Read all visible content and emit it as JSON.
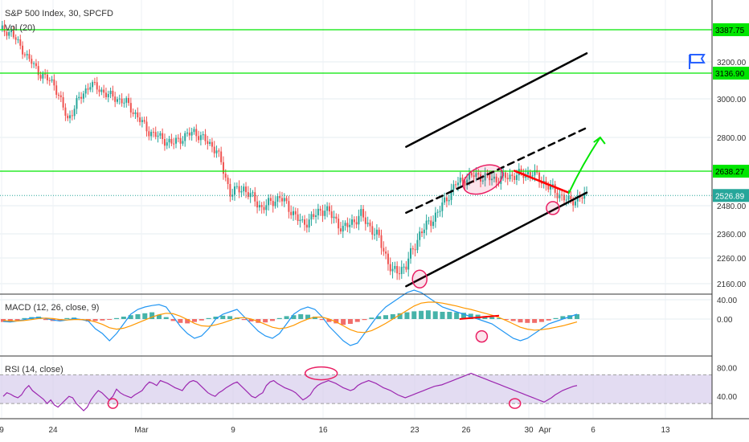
{
  "header": {
    "title": "S&P 500 Index, 30, SPCFD",
    "volume_label": "Vol (20)"
  },
  "colors": {
    "up": "#26a69a",
    "down": "#ef5350",
    "level_line": "#00e600",
    "macd_line": "#2196f3",
    "signal_line": "#ff9800",
    "rsi_line": "#9c27b0",
    "rsi_band": "#d1c4e9",
    "trendline": "#000000",
    "resistance": "#ff0000",
    "projection": "#00e600",
    "circle": "#e91e63"
  },
  "chart_data": [
    {
      "type": "line",
      "subtype": "candlestick",
      "panel": "price",
      "title": "S&P 500 Index, 30, SPCFD",
      "x_ticks": [
        "9",
        "24",
        "Mar",
        "9",
        "16",
        "23",
        "26",
        "30",
        "Apr",
        "6",
        "13"
      ],
      "y_ticks": [
        3200.0,
        3000.0,
        2800.0,
        2480.0,
        2360.0,
        2260.0,
        2160.0
      ],
      "ylim": [
        2110,
        3500
      ],
      "grid": true,
      "levels": [
        3387.75,
        3136.9,
        2638.27
      ],
      "last_price": 2526.89,
      "close_path": [
        {
          "x": 0,
          "y": 3390
        },
        {
          "x": 5,
          "y": 3370
        },
        {
          "x": 12,
          "y": 3230
        },
        {
          "x": 18,
          "y": 3130
        },
        {
          "x": 24,
          "y": 3080
        },
        {
          "x": 30,
          "y": 2890
        },
        {
          "x": 34,
          "y": 2980
        },
        {
          "x": 40,
          "y": 3080
        },
        {
          "x": 48,
          "y": 3020
        },
        {
          "x": 56,
          "y": 2980
        },
        {
          "x": 66,
          "y": 2830
        },
        {
          "x": 76,
          "y": 2770
        },
        {
          "x": 86,
          "y": 2830
        },
        {
          "x": 96,
          "y": 2740
        },
        {
          "x": 102,
          "y": 2540
        },
        {
          "x": 108,
          "y": 2560
        },
        {
          "x": 116,
          "y": 2470
        },
        {
          "x": 124,
          "y": 2520
        },
        {
          "x": 134,
          "y": 2400
        },
        {
          "x": 144,
          "y": 2470
        },
        {
          "x": 152,
          "y": 2380
        },
        {
          "x": 160,
          "y": 2440
        },
        {
          "x": 168,
          "y": 2340
        },
        {
          "x": 174,
          "y": 2200
        },
        {
          "x": 180,
          "y": 2230
        },
        {
          "x": 186,
          "y": 2360
        },
        {
          "x": 194,
          "y": 2450
        },
        {
          "x": 202,
          "y": 2580
        },
        {
          "x": 210,
          "y": 2620
        },
        {
          "x": 220,
          "y": 2600
        },
        {
          "x": 228,
          "y": 2620
        },
        {
          "x": 236,
          "y": 2630
        },
        {
          "x": 244,
          "y": 2560
        },
        {
          "x": 252,
          "y": 2500
        },
        {
          "x": 260,
          "y": 2526.89
        }
      ],
      "annotations": {
        "trend_upper": [
          [
            180,
            2755
          ],
          [
            260,
            3250
          ]
        ],
        "trend_mid_dashed": [
          [
            180,
            2450
          ],
          [
            260,
            2850
          ]
        ],
        "trend_lower": [
          [
            180,
            2150
          ],
          [
            260,
            2540
          ]
        ],
        "resistance_red": [
          [
            228,
            2640
          ],
          [
            252,
            2540
          ]
        ],
        "projection_green": [
          [
            252,
            2536
          ],
          [
            256,
            2560
          ],
          [
            266,
            2800
          ]
        ],
        "circles": [
          [
            186,
            2178
          ],
          [
            214,
            2600
          ],
          [
            245,
            2470
          ]
        ]
      }
    },
    {
      "type": "bar",
      "panel": "macd",
      "title": "MACD (12, 26, close, 9)",
      "y_ticks": [
        40.0,
        0.0
      ],
      "ylim": [
        -75,
        50
      ],
      "histogram": [
        -6,
        -5,
        -3,
        2,
        4,
        5,
        -2,
        -4,
        -3,
        2,
        3,
        -2,
        -5,
        -4,
        -3,
        -1,
        2,
        5,
        8,
        10,
        12,
        14,
        9,
        4,
        -4,
        -8,
        -9,
        -6,
        -3,
        2,
        5,
        7,
        6,
        3,
        -2,
        -5,
        -8,
        -7,
        -4,
        2,
        6,
        8,
        10,
        9,
        5,
        -2,
        -6,
        -9,
        -12,
        -10,
        -6,
        -2,
        3,
        6,
        8,
        10,
        12,
        14,
        16,
        17,
        18,
        16,
        15,
        15,
        14,
        13,
        11,
        9,
        6,
        4,
        2,
        -1,
        -4,
        -7,
        -8,
        -8,
        -6,
        -3,
        2,
        6,
        8,
        10
      ],
      "macd_line": [
        -5,
        -6,
        -4,
        -1,
        2,
        3,
        1,
        -2,
        -4,
        -2,
        1,
        -1,
        -4,
        -20,
        -30,
        -45,
        -30,
        -10,
        10,
        20,
        25,
        28,
        30,
        25,
        5,
        -15,
        -30,
        -40,
        -35,
        -20,
        0,
        10,
        15,
        20,
        5,
        -10,
        -25,
        -35,
        -40,
        -30,
        -10,
        10,
        20,
        25,
        20,
        5,
        -15,
        -30,
        -45,
        -55,
        -50,
        -30,
        -10,
        10,
        25,
        35,
        45,
        55,
        60,
        55,
        45,
        35,
        25,
        20,
        15,
        10,
        5,
        0,
        -5,
        -10,
        -20,
        -30,
        -40,
        -45,
        -40,
        -30,
        -20,
        -10,
        -5,
        0,
        5,
        10
      ],
      "signal_line": [
        -3,
        -4,
        -4,
        -3,
        -1,
        1,
        2,
        1,
        -1,
        -2,
        -1,
        -1,
        -2,
        -6,
        -11,
        -18,
        -21,
        -19,
        -14,
        -8,
        -2,
        4,
        9,
        12,
        11,
        6,
        -1,
        -9,
        -14,
        -15,
        -12,
        -8,
        -3,
        2,
        3,
        0,
        -5,
        -11,
        -17,
        -20,
        -18,
        -13,
        -6,
        0,
        4,
        4,
        0,
        -6,
        -14,
        -22,
        -27,
        -28,
        -24,
        -17,
        -9,
        0,
        9,
        18,
        27,
        33,
        35,
        35,
        33,
        30,
        27,
        23,
        20,
        16,
        12,
        8,
        3,
        -3,
        -10,
        -17,
        -21,
        -23,
        -22,
        -20,
        -17,
        -14,
        -10,
        -6
      ],
      "annotations": {
        "divergence_red": [
          [
            66,
            0
          ],
          [
            70,
            7
          ]
        ],
        "circle": [
          [
            68,
            -36
          ]
        ]
      }
    },
    {
      "type": "line",
      "panel": "rsi",
      "title": "RSI (14, close)",
      "y_ticks": [
        80.0,
        40.0
      ],
      "ylim": [
        10,
        95
      ],
      "band": [
        30,
        70
      ],
      "values": [
        40,
        45,
        43,
        40,
        38,
        42,
        50,
        55,
        48,
        44,
        40,
        36,
        30,
        35,
        28,
        25,
        30,
        35,
        40,
        38,
        30,
        25,
        20,
        25,
        35,
        42,
        48,
        45,
        40,
        35,
        40,
        50,
        45,
        42,
        40,
        38,
        42,
        45,
        48,
        55,
        60,
        58,
        55,
        62,
        60,
        58,
        55,
        52,
        50,
        48,
        55,
        60,
        62,
        60,
        55,
        50,
        45,
        42,
        40,
        45,
        48,
        52,
        55,
        58,
        60,
        55,
        50,
        45,
        40,
        38,
        42,
        45,
        55,
        60,
        62,
        58,
        55,
        52,
        50,
        48,
        45,
        40,
        35,
        38,
        42,
        50,
        55,
        58,
        60,
        62,
        60,
        58,
        55,
        52,
        50,
        48,
        50,
        55,
        58,
        60,
        62,
        60,
        58,
        55,
        52,
        50,
        48,
        45,
        42,
        40,
        38,
        40,
        42,
        44,
        46,
        48,
        50,
        52,
        54,
        55,
        56,
        58,
        60,
        62,
        64,
        66,
        68,
        70,
        72,
        70,
        68,
        66,
        64,
        62,
        60,
        58,
        56,
        54,
        52,
        50,
        48,
        46,
        44,
        42,
        40,
        38,
        36,
        34,
        32,
        35,
        38,
        42,
        45,
        48,
        50,
        52,
        54,
        55
      ],
      "annotations": {
        "circles": [
          [
            30,
            30
          ],
          [
            87,
            72
          ],
          [
            140,
            30
          ]
        ]
      }
    }
  ]
}
